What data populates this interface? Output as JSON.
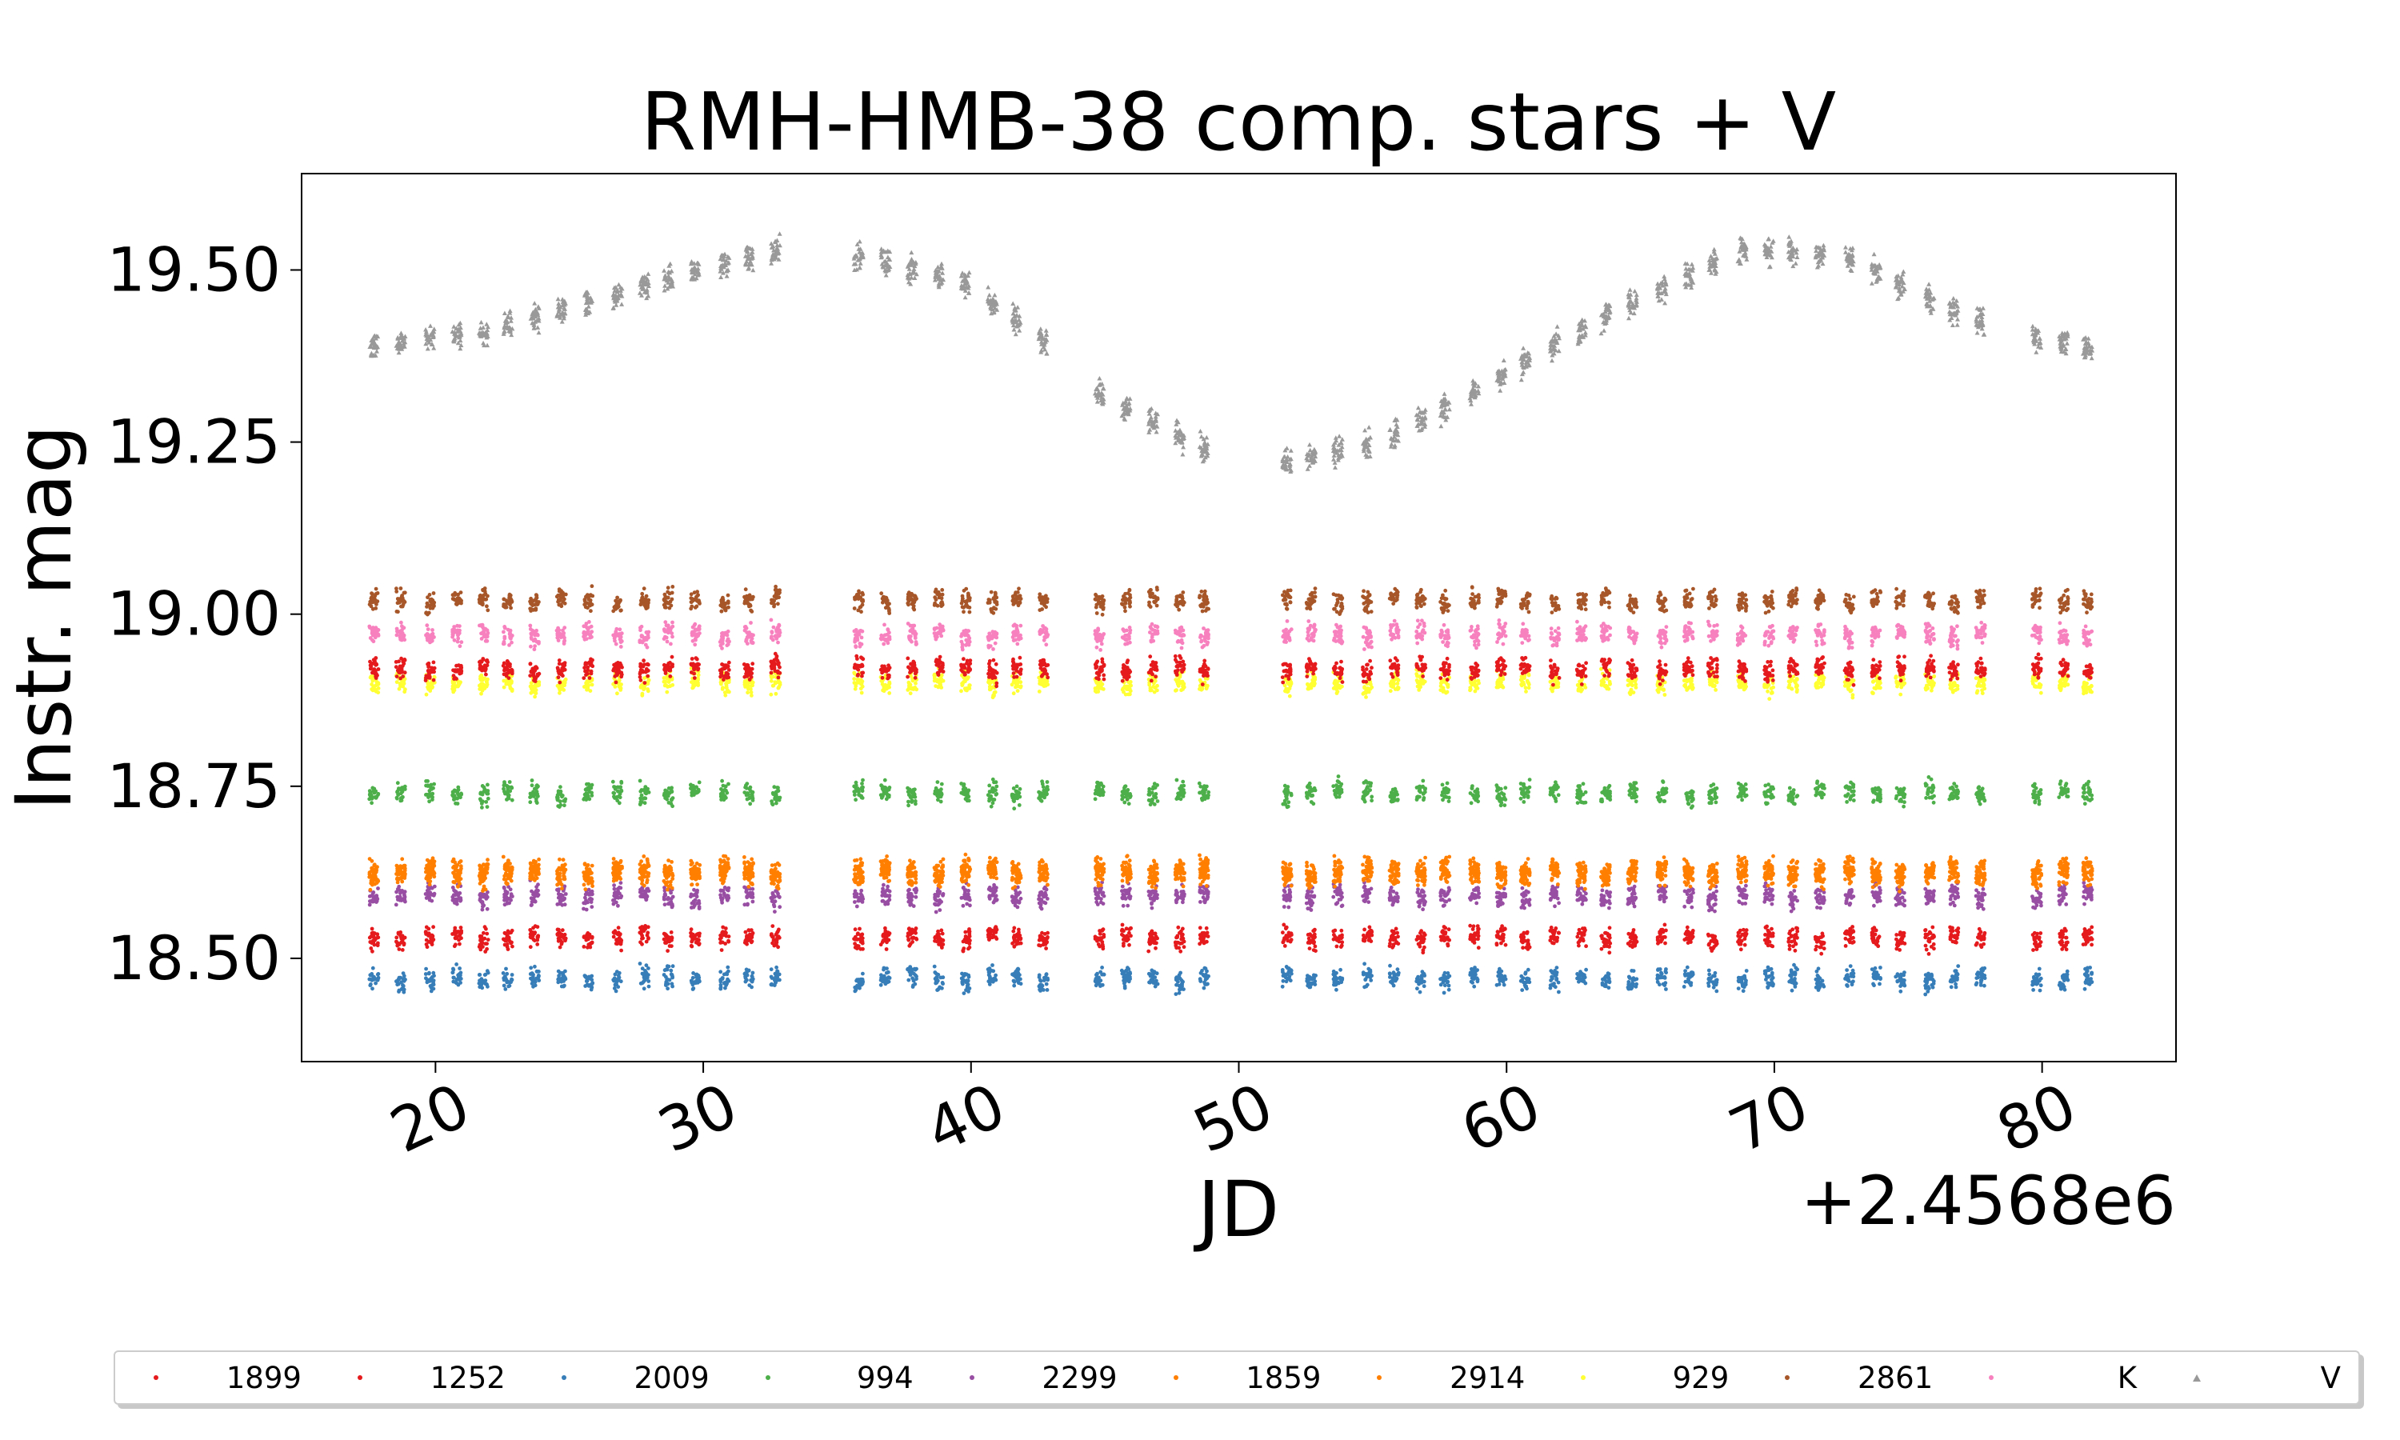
{
  "chart_data": {
    "type": "scatter",
    "title": "RMH-HMB-38 comp. stars + V",
    "xlabel": "JD",
    "ylabel": "Instr. mag",
    "x_offset_label": "+2.4568e6",
    "xlim": [
      15,
      85
    ],
    "ylim": [
      19.64,
      18.35
    ],
    "y_inverted": true,
    "x_ticks": [
      20,
      30,
      40,
      50,
      60,
      70,
      80
    ],
    "y_ticks": [
      18.5,
      18.75,
      19.0,
      19.25,
      19.5
    ],
    "x_tick_labels": [
      "20",
      "30",
      "40",
      "50",
      "60",
      "70",
      "80"
    ],
    "y_tick_labels": [
      "18.50",
      "18.75",
      "19.00",
      "19.25",
      "19.50"
    ],
    "grid": false,
    "legend_position": "bottom",
    "observation_nights": [
      17.7,
      18.7,
      19.8,
      20.8,
      21.8,
      22.7,
      23.7,
      24.7,
      25.7,
      26.8,
      27.8,
      28.7,
      29.7,
      30.8,
      31.7,
      32.7,
      35.8,
      36.8,
      37.8,
      38.8,
      39.8,
      40.8,
      41.7,
      42.7,
      44.8,
      45.8,
      46.8,
      47.8,
      48.7,
      51.8,
      52.7,
      53.7,
      54.8,
      55.8,
      56.8,
      57.7,
      58.8,
      59.8,
      60.7,
      61.8,
      62.8,
      63.7,
      64.7,
      65.8,
      66.8,
      67.7,
      68.8,
      69.8,
      70.7,
      71.7,
      72.8,
      73.8,
      74.7,
      75.8,
      76.7,
      77.7,
      79.8,
      80.8,
      81.7
    ],
    "series": [
      {
        "name": "1899",
        "color": "#e41a1c",
        "marker": "dot",
        "mean_mag": 18.92
      },
      {
        "name": "1252",
        "color": "#e41a1c",
        "marker": "dot",
        "mean_mag": 18.53
      },
      {
        "name": "2009",
        "color": "#377eb8",
        "marker": "dot",
        "mean_mag": 18.47
      },
      {
        "name": "994",
        "color": "#4daf4a",
        "marker": "dot",
        "mean_mag": 18.74
      },
      {
        "name": "2299",
        "color": "#984ea3",
        "marker": "dot",
        "mean_mag": 18.59
      },
      {
        "name": "1859",
        "color": "#ff7f00",
        "marker": "dot",
        "mean_mag": 18.62
      },
      {
        "name": "2914",
        "color": "#ff7f00",
        "marker": "dot",
        "mean_mag": 18.63
      },
      {
        "name": "929",
        "color": "#ffff33",
        "marker": "dot",
        "mean_mag": 18.9
      },
      {
        "name": "2861",
        "color": "#a65628",
        "marker": "dot",
        "mean_mag": 19.02
      },
      {
        "name": "K",
        "color": "#f781bf",
        "marker": "dot",
        "mean_mag": 18.97
      },
      {
        "name": "V",
        "color": "#999999",
        "marker": "triangle",
        "x": [
          17.7,
          21.7,
          25.7,
          29.7,
          33.0,
          35.8,
          39.8,
          43.0,
          44.8,
          48.7,
          51.8,
          55.8,
          60.0,
          64.0,
          68.8,
          72.8,
          76.7,
          79.8,
          81.7
        ],
        "y": [
          19.39,
          19.41,
          19.45,
          19.5,
          19.53,
          19.52,
          19.48,
          19.39,
          19.32,
          19.24,
          19.22,
          19.26,
          19.35,
          19.44,
          19.53,
          19.52,
          19.44,
          19.4,
          19.39
        ]
      }
    ]
  }
}
